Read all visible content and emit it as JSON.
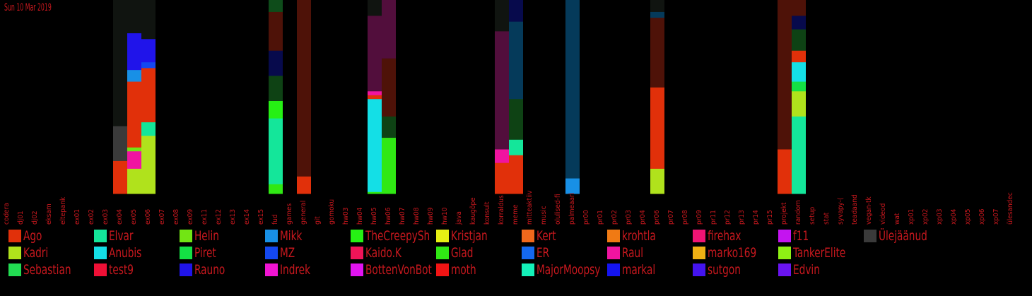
{
  "date_label": "Sun 10 Mar 2019",
  "chart_data": {
    "type": "bar",
    "stacked": true,
    "orientation": "vertical",
    "value_unit": "percent of channel activity",
    "ylim": [
      0,
      100
    ],
    "grid": false,
    "legend_position": "bottom",
    "categories": [
      "codera",
      "dj01",
      "dj02",
      "eksam",
      "eltepank",
      "ex01",
      "ex02",
      "ex03",
      "ex04",
      "ex05",
      "ex06",
      "ex07",
      "ex08",
      "ex09",
      "ex11",
      "ex12",
      "ex13",
      "ex14",
      "ex15",
      "fud",
      "games",
      "general",
      "git",
      "gomoku",
      "hw03",
      "hw04",
      "hw05",
      "hw06",
      "hw07",
      "hw08",
      "hw09",
      "hw10",
      "java",
      "kaugõpe",
      "konsult",
      "korraldus",
      "meme",
      "mitteaktiiv",
      "music",
      "olulised-fi",
      "palmeaari",
      "pr00",
      "pr01",
      "pr02",
      "pr03",
      "pr04",
      "pr06",
      "pr07",
      "pr08",
      "pr09",
      "pr11",
      "pr12",
      "pr13",
      "pr14",
      "pr15",
      "projekt",
      "random",
      "setup",
      "stat",
      "syvapy-(",
      "teadaand",
      "vegan-tk",
      "videod",
      "wat",
      "xp01",
      "xp02",
      "xp03",
      "xp04",
      "xp05",
      "xp06",
      "xp07",
      "ülesandec"
    ],
    "bars": [
      {
        "category": "ex04",
        "segments": [
          {
            "series": "Ago",
            "value": 17
          },
          {
            "series": "Ülejäänud",
            "value": 18
          },
          {
            "series": "Background",
            "value": 65
          }
        ]
      },
      {
        "category": "ex05",
        "segments": [
          {
            "series": "Kadri",
            "value": 13
          },
          {
            "series": "Raul",
            "value": 9
          },
          {
            "series": "Helin",
            "value": 2
          },
          {
            "series": "Ago",
            "value": 34
          },
          {
            "series": "Mikk",
            "value": 6
          },
          {
            "series": "Rauno",
            "value": 19
          },
          {
            "series": "Background",
            "value": 17
          }
        ]
      },
      {
        "category": "ex06",
        "segments": [
          {
            "series": "Kadri",
            "value": 30
          },
          {
            "series": "Elvar",
            "value": 7
          },
          {
            "series": "Ago",
            "value": 28
          },
          {
            "series": "MZ",
            "value": 3
          },
          {
            "series": "Rauno",
            "value": 12
          },
          {
            "series": "Background",
            "value": 20
          }
        ]
      },
      {
        "category": "fud",
        "segments": [
          {
            "series": "Glad",
            "value": 5
          },
          {
            "series": "Elvar",
            "value": 34
          },
          {
            "series": "TheCreepySh",
            "value": 9
          },
          {
            "series": "Dark green",
            "value": 13
          },
          {
            "series": "Navy",
            "value": 13
          },
          {
            "series": "Maroon",
            "value": 20
          },
          {
            "series": "Forest",
            "value": 6
          }
        ]
      },
      {
        "category": "general",
        "segments": [
          {
            "series": "Ago",
            "value": 9
          },
          {
            "series": "Maroon",
            "value": 91
          }
        ]
      },
      {
        "category": "hw05",
        "segments": [
          {
            "series": "Glad",
            "value": 1
          },
          {
            "series": "Anubis",
            "value": 48
          },
          {
            "series": "Ago",
            "value": 2
          },
          {
            "series": "Raul",
            "value": 2
          },
          {
            "series": "Purple",
            "value": 39
          },
          {
            "series": "Background",
            "value": 8
          }
        ]
      },
      {
        "category": "hw06",
        "segments": [
          {
            "series": "Glad",
            "value": 29
          },
          {
            "series": "Dark green",
            "value": 11
          },
          {
            "series": "Maroon",
            "value": 30
          },
          {
            "series": "Purple",
            "value": 30
          }
        ]
      },
      {
        "category": "korraldus",
        "segments": [
          {
            "series": "Ago",
            "value": 16
          },
          {
            "series": "Raul",
            "value": 7
          },
          {
            "series": "Purple",
            "value": 61
          },
          {
            "series": "Background",
            "value": 16
          }
        ]
      },
      {
        "category": "meme",
        "segments": [
          {
            "series": "Ago",
            "value": 20
          },
          {
            "series": "Elvar",
            "value": 8
          },
          {
            "series": "Dark green",
            "value": 21
          },
          {
            "series": "Teal blue",
            "value": 40
          },
          {
            "series": "Navy",
            "value": 11
          }
        ]
      },
      {
        "category": "palmeaari",
        "segments": [
          {
            "series": "Mikk",
            "value": 8
          },
          {
            "series": "Teal blue",
            "value": 92
          }
        ]
      },
      {
        "category": "pr06",
        "segments": [
          {
            "series": "Kadri",
            "value": 13
          },
          {
            "series": "Ago",
            "value": 42
          },
          {
            "series": "Maroon",
            "value": 36
          },
          {
            "series": "Teal blue",
            "value": 3
          },
          {
            "series": "Background",
            "value": 6
          }
        ]
      },
      {
        "category": "projekt",
        "segments": [
          {
            "series": "Ago",
            "value": 23
          },
          {
            "series": "Maroon",
            "value": 77
          }
        ]
      },
      {
        "category": "random",
        "segments": [
          {
            "series": "Elvar",
            "value": 40
          },
          {
            "series": "Kadri",
            "value": 13
          },
          {
            "series": "Piret",
            "value": 5
          },
          {
            "series": "Anubis",
            "value": 10
          },
          {
            "series": "Ago",
            "value": 6
          },
          {
            "series": "Dark green",
            "value": 11
          },
          {
            "series": "Navy",
            "value": 7
          },
          {
            "series": "Maroon",
            "value": 8
          }
        ]
      }
    ]
  },
  "legend": [
    {
      "name": "Ago",
      "color": "#e1300a"
    },
    {
      "name": "Kadri",
      "color": "#b0e21c"
    },
    {
      "name": "Sebastian",
      "color": "#22dc52"
    },
    {
      "name": "Elvar",
      "color": "#14e69a"
    },
    {
      "name": "Anubis",
      "color": "#14dfe6"
    },
    {
      "name": "test9",
      "color": "#ef1036"
    },
    {
      "name": "Helin",
      "color": "#72e514"
    },
    {
      "name": "Piret",
      "color": "#14e144"
    },
    {
      "name": "Rauno",
      "color": "#2014ea"
    },
    {
      "name": "Mikk",
      "color": "#1890e6"
    },
    {
      "name": "MZ",
      "color": "#1448f0"
    },
    {
      "name": "Indrek",
      "color": "#f014d2"
    },
    {
      "name": "TheCreepySh",
      "color": "#26f014"
    },
    {
      "name": "Kaido.K",
      "color": "#f01458"
    },
    {
      "name": "BottenVonBot",
      "color": "#e014f0"
    },
    {
      "name": "Kristjan",
      "color": "#e6f014"
    },
    {
      "name": "Glad",
      "color": "#30e814"
    },
    {
      "name": "moth",
      "color": "#f01414"
    },
    {
      "name": "Kert",
      "color": "#f0681c"
    },
    {
      "name": "ER",
      "color": "#1468f0"
    },
    {
      "name": "MajorMoopsy",
      "color": "#14f0b8"
    },
    {
      "name": "krohtla",
      "color": "#f07a14"
    },
    {
      "name": "Raul",
      "color": "#f014a0"
    },
    {
      "name": "markal",
      "color": "#1414f0"
    },
    {
      "name": "firehax",
      "color": "#f01474"
    },
    {
      "name": "marko169",
      "color": "#f0b014"
    },
    {
      "name": "sutgon",
      "color": "#4414f0"
    },
    {
      "name": "f11",
      "color": "#c414f0"
    },
    {
      "name": "TankerElite",
      "color": "#8ef014"
    },
    {
      "name": "Edvin",
      "color": "#6a14f0"
    },
    {
      "name": "Ülejäänud",
      "color": "#3a3a3a"
    }
  ],
  "unlisted_colors": {
    "Background": "#101410",
    "Maroon": "#4e1208",
    "Purple": "#520e3c",
    "Dark green": "#0e4214",
    "Navy": "#070a4c",
    "Teal blue": "#053a5a",
    "Forest": "#0e4c1a"
  }
}
